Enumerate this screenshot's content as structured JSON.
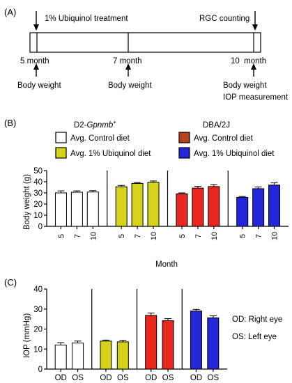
{
  "panel_a": {
    "label": "(A)",
    "treatment_label": "1% Ubiquinol treatment",
    "counting_label": "RGC counting",
    "timepoints": [
      {
        "month": "5 month",
        "measure": "Body weight",
        "extra": ""
      },
      {
        "month": "7 month",
        "measure": "Body weight",
        "extra": ""
      },
      {
        "month": "10  month",
        "measure": "Body weight",
        "extra": "IOP measurement"
      }
    ]
  },
  "panel_b": {
    "label": "(B)",
    "legend": {
      "group1_title_prefix": "D2-",
      "group1_title_gene": "Gpnmb",
      "group1_title_sup": "+",
      "group2_title": "DBA/2J",
      "items": [
        {
          "label": "Avg. Control diet",
          "color": "#ffffff"
        },
        {
          "label": "Avg. 1% Ubiquinol diet",
          "color": "#d4d21a"
        },
        {
          "label": "Avg. Control diet",
          "color": "#b5441d"
        },
        {
          "label": "Avg. 1% Ubiquinol diet",
          "color": "#2327d8"
        }
      ]
    }
  },
  "panel_c": {
    "label": "(C)",
    "notes": [
      "OD: Right eye",
      "OS: Left eye"
    ]
  },
  "chart_data": [
    {
      "type": "bar",
      "title": "",
      "xlabel": "Month",
      "ylabel": "Body weight (g)",
      "ylim": [
        0,
        50
      ],
      "yticks": [
        0,
        10,
        20,
        30,
        40,
        50
      ],
      "categories": [
        "5",
        "7",
        "10"
      ],
      "grid": false,
      "series": [
        {
          "name": "D2-Gpnmb+ Avg. Control diet",
          "color": "#ffffff",
          "values": [
            30.0,
            30.6,
            30.8
          ],
          "errors": [
            1.8,
            1.2,
            1.2
          ]
        },
        {
          "name": "D2-Gpnmb+ Avg. 1% Ubiquinol diet",
          "color": "#d4d21a",
          "values": [
            35.5,
            38.5,
            39.5
          ],
          "errors": [
            1.2,
            0.8,
            1.2
          ]
        },
        {
          "name": "DBA/2J Avg. Control diet",
          "color": "#e8261e",
          "values": [
            29.2,
            34.3,
            35.7
          ],
          "errors": [
            0.8,
            1.6,
            1.8
          ]
        },
        {
          "name": "DBA/2J Avg. 1% Ubiquinol diet",
          "color": "#2327d8",
          "values": [
            26.0,
            33.8,
            37.0
          ],
          "errors": [
            0.8,
            1.6,
            2.0
          ]
        }
      ]
    },
    {
      "type": "bar",
      "title": "",
      "xlabel": "",
      "ylabel": "IOP (mmHg)",
      "ylim": [
        0,
        40
      ],
      "yticks": [
        0,
        10,
        20,
        30,
        40
      ],
      "categories": [
        "OD",
        "OS"
      ],
      "grid": false,
      "series": [
        {
          "name": "D2-Gpnmb+ Avg. Control diet",
          "color": "#ffffff",
          "values": [
            12.0,
            13.0
          ],
          "errors": [
            1.2,
            1.0
          ]
        },
        {
          "name": "D2-Gpnmb+ Avg. 1% Ubiquinol diet",
          "color": "#d4d21a",
          "values": [
            14.0,
            13.6
          ],
          "errors": [
            0.5,
            0.8
          ]
        },
        {
          "name": "DBA/2J Avg. Control diet",
          "color": "#e8261e",
          "values": [
            26.8,
            24.2
          ],
          "errors": [
            1.2,
            1.0
          ]
        },
        {
          "name": "DBA/2J Avg. 1% Ubiquinol diet",
          "color": "#2327d8",
          "values": [
            29.0,
            25.6
          ],
          "errors": [
            0.8,
            1.0
          ]
        }
      ]
    }
  ]
}
